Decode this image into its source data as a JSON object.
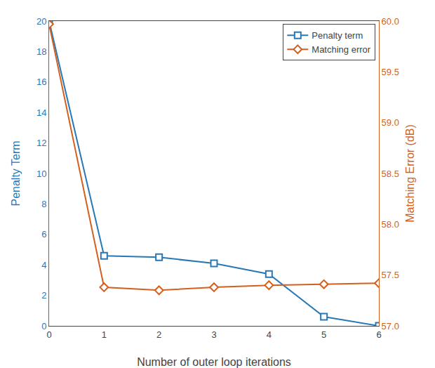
{
  "chart_data": {
    "type": "line",
    "xlabel": "Number of outer loop iterations",
    "ylabel": "Penalty Term",
    "y2label": "Matching Error (dB)",
    "x": [
      0,
      1,
      2,
      3,
      4,
      5,
      6
    ],
    "series": [
      {
        "name": "Penalty term",
        "color": "#2878b5",
        "marker": "square",
        "values": [
          20.0,
          4.6,
          4.5,
          4.1,
          3.4,
          0.6,
          0.0
        ]
      },
      {
        "name": "Matching error",
        "color": "#d45f1e",
        "marker": "diamond",
        "axis": "y2",
        "values": [
          59.97,
          57.38,
          57.35,
          57.38,
          57.4,
          57.41,
          57.42
        ]
      }
    ],
    "xlim": [
      0,
      6
    ],
    "xticks": [
      0,
      1,
      2,
      3,
      4,
      5,
      6
    ],
    "ylim": [
      0,
      20
    ],
    "yticks": [
      0,
      2,
      4,
      6,
      8,
      10,
      12,
      14,
      16,
      18,
      20
    ],
    "y2lim": [
      57,
      60
    ],
    "y2ticks": [
      {
        "value": 57.0,
        "label": "57.0"
      },
      57.5,
      {
        "value": 58.0,
        "label": "58.0"
      },
      58.5,
      {
        "value": 59.0,
        "label": "59.0"
      },
      59.5,
      {
        "value": 60.0,
        "label": "60.0"
      }
    ],
    "grid": false,
    "legend": "upper right"
  }
}
